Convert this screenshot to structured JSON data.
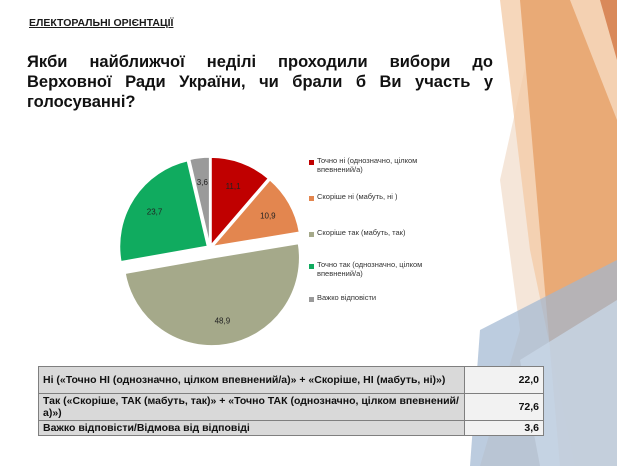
{
  "slide": {
    "section_label": "ЕЛЕКТОРАЛЬНІ ОРІЄНТАЦІЇ",
    "question": "Якби найближчої неділі проходили вибори до Верховної Ради України, чи брали б Ви участь у голосуванні?"
  },
  "chart_data": {
    "type": "pie",
    "title": "",
    "slices": [
      {
        "label": "Точно ні (однозначно, цілком впевнений/а)",
        "value": 11.1,
        "value_label": "11,1",
        "color": "#c00000"
      },
      {
        "label": "Скоріше ні (мабуть, ні )",
        "value": 10.9,
        "value_label": "10,9",
        "color": "#e3864f"
      },
      {
        "label": "Скоріше так (мабуть, так)",
        "value": 48.9,
        "value_label": "48,9",
        "color": "#a5a98a"
      },
      {
        "label": "Точно так (однозначно, цілком впевнений/а)",
        "value": 23.7,
        "value_label": "23,7",
        "color": "#10ab5f"
      },
      {
        "label": "Важко відповісти",
        "value": 3.6,
        "value_label": "3,6",
        "color": "#9a9a9a"
      }
    ],
    "legend_position": "right",
    "exploded_slice": "Скоріше так (мабуть, так)"
  },
  "summary_table": [
    {
      "label": "Ні («Точно НІ (однозначно, цілком впевнений/а)» + «Скоріше, НІ (мабуть, ні)»)",
      "value": "22,0"
    },
    {
      "label": "Так («Скоріше, ТАК (мабуть, так)» + «Точно ТАК (однозначно, цілком впевнений/а)»)",
      "value": "72,6"
    },
    {
      "label": "Важко відповісти/Відмова від відповіді",
      "value": "3,6"
    }
  ],
  "theme": {
    "decor_orange": "#e8a56f",
    "decor_blue": "#9fb7d2"
  }
}
